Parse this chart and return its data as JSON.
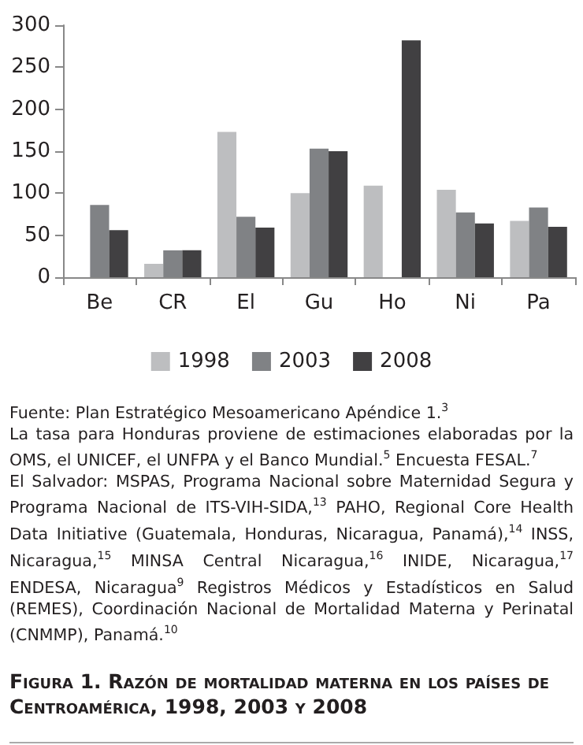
{
  "chart_data": {
    "type": "bar",
    "title": "Figura 1. Razón de mortalidad materna en los países de Centroamérica, 1998, 2003 y 2008",
    "categories": [
      "Be",
      "CR",
      "El",
      "Gu",
      "Ho",
      "Ni",
      "Pa"
    ],
    "series": [
      {
        "name": "1998",
        "color": "#bdbec0",
        "values": [
          null,
          16,
          173,
          100,
          109,
          104,
          67
        ]
      },
      {
        "name": "2003",
        "color": "#808285",
        "values": [
          86,
          32,
          72,
          153,
          null,
          77,
          83
        ]
      },
      {
        "name": "2008",
        "color": "#414042",
        "values": [
          56,
          32,
          59,
          150,
          282,
          64,
          60
        ]
      }
    ],
    "ylim": [
      0,
      300
    ],
    "yticks": [
      0,
      50,
      100,
      150,
      200,
      250,
      300
    ],
    "grid": false,
    "legend": "bottom",
    "annotations": [
      "Fuente: Plan Estratégico Mesoamericano Apéndice 1.$^{3}$",
      "La tasa para Honduras proviene de estimaciones elaboradas por la OMS, el UNICEF, el UNFPA y el Banco Mundial.$^{5}$ Encuesta FESAL.$^{7}$",
      "El Salvador: MSPAS, Programa Nacional sobre Maternidad Segura y Programa Nacional de ITS-VIH-SIDA,$^{13}$ PAHO, Regional Core Health Data Initiative (Guatemala, Honduras, Nicaragua, Panamá),$^{14}$ INSS, Nicaragua,$^{15}$ MINSA Central Nicaragua,$^{16}$ INIDE, Nicaragua,$^{17}$ ENDESA, Nicaragua$^{9}$ Registros Médicos y Estadísticos en Salud (REMES), Coordinación Nacional de Mortalidad Materna y Perinatal (CNMMP), Panamá.$^{10}$"
    ]
  }
}
